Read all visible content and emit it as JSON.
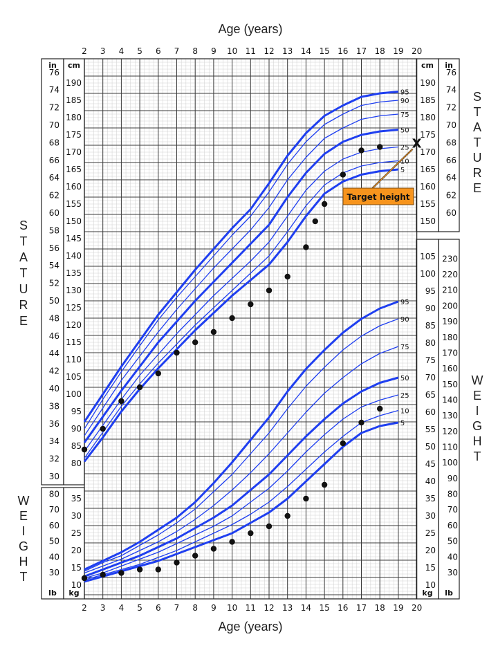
{
  "chart_data": {
    "type": "line",
    "x_axis_label": "Age (years)",
    "age_ticks": [
      2,
      3,
      4,
      5,
      6,
      7,
      8,
      9,
      10,
      11,
      12,
      13,
      14,
      15,
      16,
      17,
      18,
      19,
      20
    ],
    "stature_label": "STATURE",
    "weight_label": "WEIGHT",
    "units": {
      "inches": "in",
      "centimeters": "cm",
      "kilograms": "kg",
      "pounds": "lb"
    },
    "stature_cm_ticks": [
      80,
      85,
      90,
      95,
      100,
      105,
      110,
      115,
      120,
      125,
      130,
      135,
      140,
      145,
      150,
      155,
      160,
      165,
      170,
      175,
      180,
      185,
      190
    ],
    "stature_cm_ticks_right": [
      150,
      155,
      160,
      165,
      170,
      175,
      180,
      185,
      190
    ],
    "stature_in_ticks": [
      30,
      32,
      34,
      36,
      38,
      40,
      42,
      44,
      46,
      48,
      50,
      52,
      54,
      56,
      58,
      60,
      62,
      64,
      66,
      68,
      70,
      72,
      74,
      76
    ],
    "stature_in_ticks_right": [
      60,
      62,
      64,
      66,
      68,
      70,
      72,
      74,
      76
    ],
    "weight_kg_ticks_right": [
      10,
      15,
      20,
      25,
      30,
      35,
      40,
      45,
      50,
      55,
      60,
      65,
      70,
      75,
      80,
      85,
      90,
      95,
      100,
      105
    ],
    "weight_lb_ticks_right": [
      30,
      40,
      50,
      60,
      70,
      80,
      90,
      100,
      110,
      120,
      130,
      140,
      150,
      160,
      170,
      180,
      190,
      200,
      210,
      220,
      230
    ],
    "weight_kg_ticks_left": [
      10,
      15,
      20,
      25,
      30,
      35
    ],
    "weight_lb_ticks_left": [
      30,
      40,
      50,
      60,
      70,
      80
    ],
    "stature_percentiles": [
      {
        "label": "5",
        "values": [
          80.5,
          87.5,
          95,
          101.5,
          107.5,
          113,
          118.5,
          123.5,
          128.5,
          133,
          137.5,
          144,
          151.5,
          158,
          161.5,
          163.5,
          164.5,
          165
        ]
      },
      {
        "label": "10",
        "values": [
          81.5,
          89,
          96.5,
          103,
          109,
          114.5,
          120,
          125,
          130,
          135,
          140,
          147,
          154.5,
          160.5,
          164,
          166,
          167,
          167.5
        ]
      },
      {
        "label": "25",
        "values": [
          83.5,
          91,
          98.5,
          105.5,
          111.5,
          117.5,
          123,
          128.5,
          133.5,
          138.5,
          144,
          151.5,
          159,
          164.5,
          168,
          170,
          171,
          171.5
        ]
      },
      {
        "label": "50",
        "values": [
          86,
          93.5,
          101,
          108,
          115,
          121,
          127,
          132.5,
          138,
          143.5,
          149,
          157,
          164,
          169.5,
          173,
          175,
          176,
          176.5
        ]
      },
      {
        "label": "75",
        "values": [
          88,
          96,
          104,
          111,
          118,
          124.5,
          130.5,
          136.5,
          142,
          147.5,
          154,
          162,
          168.5,
          174,
          177,
          179.5,
          180.5,
          181
        ]
      },
      {
        "label": "90",
        "values": [
          90,
          98.5,
          106.5,
          114,
          121.5,
          128,
          134,
          140,
          146,
          151.5,
          158.5,
          166.5,
          173,
          178,
          181,
          183.5,
          184.5,
          185
        ]
      },
      {
        "label": "95",
        "values": [
          92,
          100,
          108,
          115.5,
          123,
          129.5,
          136,
          142,
          148,
          153.5,
          161,
          169,
          175.5,
          180.5,
          183.5,
          186,
          187,
          187.5
        ]
      }
    ],
    "weight_percentiles": [
      {
        "label": "5",
        "values": [
          11,
          12.5,
          14,
          15.5,
          17,
          19,
          21,
          23,
          25,
          28,
          31,
          35,
          40,
          45,
          50,
          54,
          56,
          57
        ]
      },
      {
        "label": "10",
        "values": [
          11.5,
          13,
          14.5,
          16,
          18,
          20,
          22.5,
          25,
          27.5,
          30.5,
          34,
          38.5,
          43.5,
          48.5,
          53,
          57,
          59,
          60.5
        ]
      },
      {
        "label": "25",
        "values": [
          12,
          13.5,
          15.5,
          17.5,
          19.5,
          22,
          24.5,
          27,
          30,
          34,
          38,
          43,
          48.5,
          53.5,
          58,
          61.5,
          63.5,
          65
        ]
      },
      {
        "label": "50",
        "values": [
          12.5,
          14.5,
          16.5,
          18.5,
          21,
          23.5,
          26.5,
          29.5,
          33,
          37.5,
          42,
          47.5,
          53,
          58,
          62.5,
          66,
          68.5,
          70
        ]
      },
      {
        "label": "75",
        "values": [
          13.5,
          15.5,
          17.5,
          20,
          22.5,
          25.5,
          29,
          33,
          37.5,
          42.5,
          48,
          54,
          60,
          65.5,
          70,
          74,
          77,
          79
        ]
      },
      {
        "label": "90",
        "values": [
          14,
          16.5,
          18.5,
          21.5,
          24.5,
          28,
          32,
          37,
          42,
          48,
          54,
          61,
          67.5,
          73,
          78,
          82,
          85,
          87
        ]
      },
      {
        "label": "95",
        "values": [
          14.5,
          17,
          19.5,
          22.5,
          26,
          29.5,
          34,
          39.5,
          45.5,
          52,
          58.5,
          66,
          72.5,
          78,
          83,
          87,
          90,
          92
        ]
      }
    ],
    "stature_measurements": [
      {
        "age": 2,
        "cm": 84
      },
      {
        "age": 3,
        "cm": 90
      },
      {
        "age": 4,
        "cm": 98
      },
      {
        "age": 5,
        "cm": 102
      },
      {
        "age": 6,
        "cm": 106
      },
      {
        "age": 7,
        "cm": 112
      },
      {
        "age": 8,
        "cm": 115
      },
      {
        "age": 9,
        "cm": 118
      },
      {
        "age": 10,
        "cm": 122
      },
      {
        "age": 11,
        "cm": 126
      },
      {
        "age": 12,
        "cm": 130
      },
      {
        "age": 13,
        "cm": 134
      },
      {
        "age": 14,
        "cm": 142.5
      },
      {
        "age": 14.5,
        "cm": 150
      },
      {
        "age": 15,
        "cm": 155
      },
      {
        "age": 16,
        "cm": 163.5
      },
      {
        "age": 17,
        "cm": 170.5
      },
      {
        "age": 18,
        "cm": 171.5
      }
    ],
    "weight_measurements": [
      {
        "age": 2,
        "kg": 12
      },
      {
        "age": 3,
        "kg": 13
      },
      {
        "age": 4,
        "kg": 13.5
      },
      {
        "age": 5,
        "kg": 14.5
      },
      {
        "age": 6,
        "kg": 14.5
      },
      {
        "age": 7,
        "kg": 16.5
      },
      {
        "age": 8,
        "kg": 18.5
      },
      {
        "age": 9,
        "kg": 20.5
      },
      {
        "age": 10,
        "kg": 22.5
      },
      {
        "age": 11,
        "kg": 25
      },
      {
        "age": 12,
        "kg": 27
      },
      {
        "age": 13,
        "kg": 30
      },
      {
        "age": 14,
        "kg": 35
      },
      {
        "age": 15,
        "kg": 39
      },
      {
        "age": 16,
        "kg": 51
      },
      {
        "age": 17,
        "kg": 57
      },
      {
        "age": 18,
        "kg": 61
      }
    ],
    "target_height": {
      "label": "Target height",
      "marker": "X",
      "age": 20,
      "cm": 172.5,
      "box_color": "#f7941d"
    },
    "colors": {
      "percentile_line": "#1f3ff0",
      "grid": "#3a3a3a",
      "minor_grid": "#cfcfcf",
      "point": "#111111"
    }
  }
}
